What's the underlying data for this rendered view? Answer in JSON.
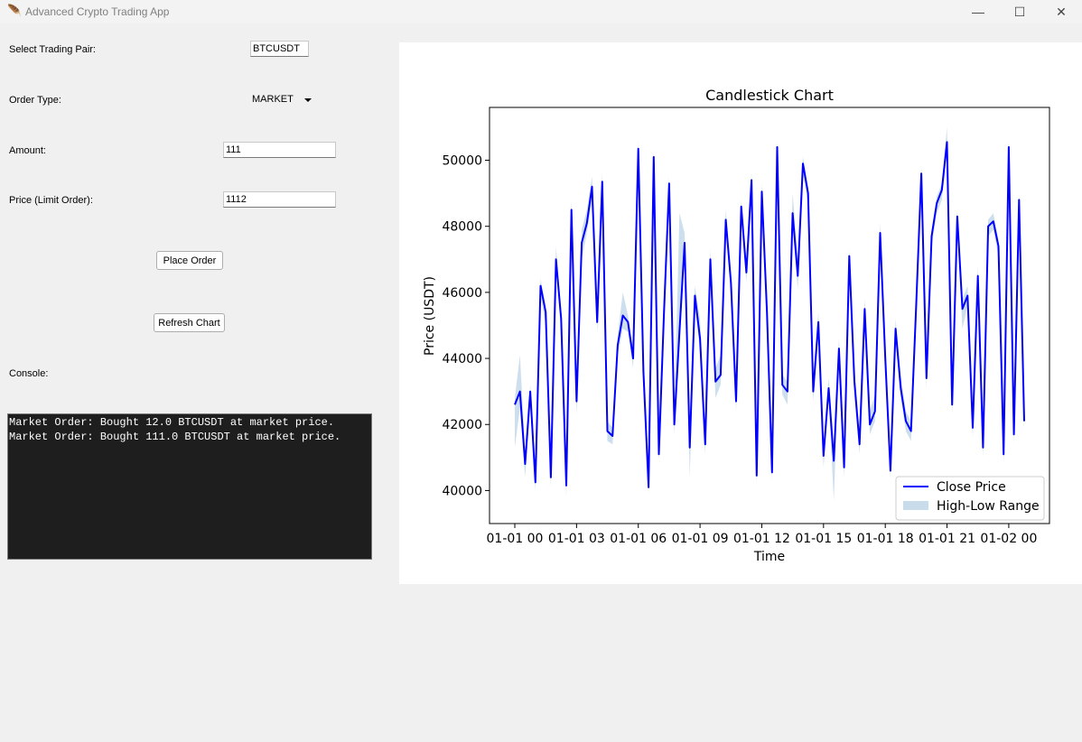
{
  "window": {
    "title": "Advanced Crypto Trading App",
    "minimize": "—",
    "maximize": "☐",
    "close": "✕"
  },
  "form": {
    "pair_label": "Select Trading Pair:",
    "pair_value": "BTCUSDT",
    "order_type_label": "Order Type:",
    "order_type_value": "MARKET",
    "amount_label": "Amount:",
    "amount_value": "111",
    "price_label": "Price (Limit Order):",
    "price_value": "1112",
    "place_order": "Place Order",
    "refresh_chart": "Refresh Chart",
    "console_label": "Console:"
  },
  "console": {
    "text": "Market Order: Bought 12.0 BTCUSDT at market price.\nMarket Order: Bought 111.0 BTCUSDT at market price."
  },
  "chart_data": {
    "type": "line",
    "title": "Candlestick Chart",
    "xlabel": "Time",
    "ylabel": "Price (USDT)",
    "x": [
      "01-01 00:00",
      "01-01 00:15",
      "01-01 00:30",
      "01-01 00:45",
      "01-01 01:00",
      "01-01 01:15",
      "01-01 01:30",
      "01-01 01:45",
      "01-01 02:00",
      "01-01 02:15",
      "01-01 02:30",
      "01-01 02:45",
      "01-01 03:00",
      "01-01 03:15",
      "01-01 03:30",
      "01-01 03:45",
      "01-01 04:00",
      "01-01 04:15",
      "01-01 04:30",
      "01-01 04:45",
      "01-01 05:00",
      "01-01 05:15",
      "01-01 05:30",
      "01-01 05:45",
      "01-01 06:00",
      "01-01 06:15",
      "01-01 06:30",
      "01-01 06:45",
      "01-01 07:00",
      "01-01 07:15",
      "01-01 07:30",
      "01-01 07:45",
      "01-01 08:00",
      "01-01 08:15",
      "01-01 08:30",
      "01-01 08:45",
      "01-01 09:00",
      "01-01 09:15",
      "01-01 09:30",
      "01-01 09:45",
      "01-01 10:00",
      "01-01 10:15",
      "01-01 10:30",
      "01-01 10:45",
      "01-01 11:00",
      "01-01 11:15",
      "01-01 11:30",
      "01-01 11:45",
      "01-01 12:00",
      "01-01 12:15",
      "01-01 12:30",
      "01-01 12:45",
      "01-01 13:00",
      "01-01 13:15",
      "01-01 13:30",
      "01-01 13:45",
      "01-01 14:00",
      "01-01 14:15",
      "01-01 14:30",
      "01-01 14:45",
      "01-01 15:00",
      "01-01 15:15",
      "01-01 15:30",
      "01-01 15:45",
      "01-01 16:00",
      "01-01 16:15",
      "01-01 16:30",
      "01-01 16:45",
      "01-01 17:00",
      "01-01 17:15",
      "01-01 17:30",
      "01-01 17:45",
      "01-01 18:00",
      "01-01 18:15",
      "01-01 18:30",
      "01-01 18:45",
      "01-01 19:00",
      "01-01 19:15",
      "01-01 19:30",
      "01-01 19:45",
      "01-01 20:00",
      "01-01 20:15",
      "01-01 20:30",
      "01-01 20:45",
      "01-01 21:00",
      "01-01 21:15",
      "01-01 21:30",
      "01-01 21:45",
      "01-01 22:00",
      "01-01 22:15",
      "01-01 22:30",
      "01-01 22:45",
      "01-01 23:00",
      "01-01 23:15",
      "01-01 23:30",
      "01-01 23:45",
      "01-02 00:00",
      "01-02 00:15",
      "01-02 00:30",
      "01-02 00:45"
    ],
    "series": [
      {
        "name": "Close Price",
        "color": "#0000ff",
        "values": [
          42600,
          43000,
          40800,
          43000,
          40250,
          46200,
          45400,
          40400,
          47000,
          45200,
          40150,
          48500,
          42700,
          47500,
          48100,
          49200,
          45100,
          49350,
          41800,
          41650,
          44400,
          45300,
          45100,
          44000,
          50350,
          43600,
          40100,
          50100,
          41100,
          45400,
          49300,
          42000,
          44800,
          47500,
          41300,
          45900,
          44600,
          41400,
          47000,
          43300,
          43500,
          48200,
          46300,
          42700,
          48600,
          46600,
          49400,
          40450,
          49050,
          45400,
          40550,
          50400,
          43200,
          43000,
          48400,
          46500,
          49900,
          49000,
          43000,
          45100,
          41050,
          43100,
          40900,
          44300,
          40700,
          47100,
          43300,
          41400,
          45500,
          42000,
          42400,
          47800,
          44000,
          40600,
          44900,
          43100,
          42100,
          41800,
          45600,
          49600,
          43400,
          47700,
          48700,
          49100,
          50550,
          42600,
          48300,
          45500,
          45900,
          41900,
          46500,
          41300,
          48000,
          48150,
          47400,
          41100,
          50400,
          41700,
          48800,
          42100
        ]
      },
      {
        "name": "High-Low Range",
        "color": "#c8dcec"
      }
    ],
    "high": [
      42800,
      44100,
      41200,
      43200,
      40500,
      46400,
      45600,
      40800,
      47400,
      45500,
      40400,
      48800,
      43100,
      47900,
      48500,
      49500,
      45500,
      49600,
      42100,
      41900,
      44700,
      46000,
      45300,
      44300,
      50600,
      44200,
      40500,
      50300,
      41500,
      45700,
      49500,
      42300,
      48400,
      47800,
      41800,
      46200,
      45200,
      41700,
      47300,
      43700,
      44100,
      48500,
      46600,
      43000,
      48800,
      47000,
      49600,
      40800,
      49300,
      45800,
      40900,
      50600,
      43500,
      43300,
      49000,
      47000,
      50100,
      49200,
      43300,
      45400,
      41400,
      43400,
      41200,
      44600,
      41000,
      47300,
      43700,
      41800,
      45800,
      42400,
      42900,
      48100,
      44400,
      41000,
      45200,
      43500,
      42400,
      42100,
      45900,
      49800,
      43800,
      47900,
      48900,
      49300,
      51000,
      43000,
      48500,
      45800,
      46200,
      42300,
      46800,
      41700,
      48200,
      48400,
      47600,
      41500,
      50600,
      42000,
      49000,
      42400
    ],
    "low": [
      41300,
      42500,
      40400,
      42600,
      40000,
      45900,
      45000,
      40100,
      46700,
      44900,
      39800,
      48100,
      42300,
      47000,
      47800,
      48800,
      44800,
      49000,
      41500,
      41400,
      44100,
      44900,
      44800,
      43700,
      50000,
      43300,
      39900,
      49800,
      40900,
      45100,
      49000,
      41700,
      44200,
      47200,
      40400,
      45600,
      44200,
      41100,
      46700,
      42800,
      43200,
      47900,
      46000,
      42400,
      48300,
      46300,
      49100,
      40200,
      48800,
      45000,
      40300,
      50100,
      42900,
      42600,
      48000,
      46100,
      49600,
      48700,
      42700,
      44800,
      40700,
      42800,
      39700,
      44000,
      40400,
      46800,
      42900,
      41100,
      45200,
      41700,
      42100,
      47500,
      43700,
      40400,
      44600,
      42800,
      41800,
      41500,
      45300,
      49300,
      43100,
      47400,
      48400,
      48800,
      50200,
      42300,
      48000,
      44900,
      45600,
      41600,
      46200,
      41000,
      47700,
      47900,
      47100,
      40800,
      50100,
      41400,
      48500,
      41800
    ],
    "y_ticks": [
      "40000",
      "42000",
      "44000",
      "46000",
      "48000",
      "50000"
    ],
    "x_ticks": [
      "01-01 00",
      "01-01 03",
      "01-01 06",
      "01-01 09",
      "01-01 12",
      "01-01 15",
      "01-01 18",
      "01-01 21",
      "01-02 00"
    ],
    "ylim": [
      39000,
      51600
    ],
    "legend": "lower-right",
    "grid": false
  }
}
